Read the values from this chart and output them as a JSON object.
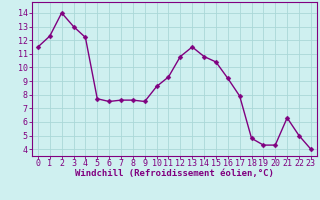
{
  "x": [
    0,
    1,
    2,
    3,
    4,
    5,
    6,
    7,
    8,
    9,
    10,
    11,
    12,
    13,
    14,
    15,
    16,
    17,
    18,
    19,
    20,
    21,
    22,
    23
  ],
  "y": [
    11.5,
    12.3,
    14.0,
    13.0,
    12.2,
    7.7,
    7.5,
    7.6,
    7.6,
    7.5,
    8.6,
    9.3,
    10.8,
    11.5,
    10.8,
    10.4,
    9.2,
    7.9,
    4.8,
    4.3,
    4.3,
    6.3,
    5.0,
    4.0
  ],
  "line_color": "#800080",
  "marker": "D",
  "markersize": 2.5,
  "linewidth": 1.0,
  "xlabel": "Windchill (Refroidissement éolien,°C)",
  "xlabel_color": "#800080",
  "xlabel_fontsize": 6.5,
  "xtick_labels": [
    "0",
    "1",
    "2",
    "3",
    "4",
    "5",
    "6",
    "7",
    "8",
    "9",
    "10",
    "11",
    "12",
    "13",
    "14",
    "15",
    "16",
    "17",
    "18",
    "19",
    "20",
    "21",
    "22",
    "23"
  ],
  "ytick_labels": [
    "4",
    "5",
    "6",
    "7",
    "8",
    "9",
    "10",
    "11",
    "12",
    "13",
    "14"
  ],
  "ylim": [
    3.5,
    14.8
  ],
  "xlim": [
    -0.5,
    23.5
  ],
  "background_color": "#cff0f0",
  "grid_color": "#aad8d8",
  "tick_color": "#800080",
  "tick_labelsize": 6.0,
  "spine_color": "#800080"
}
